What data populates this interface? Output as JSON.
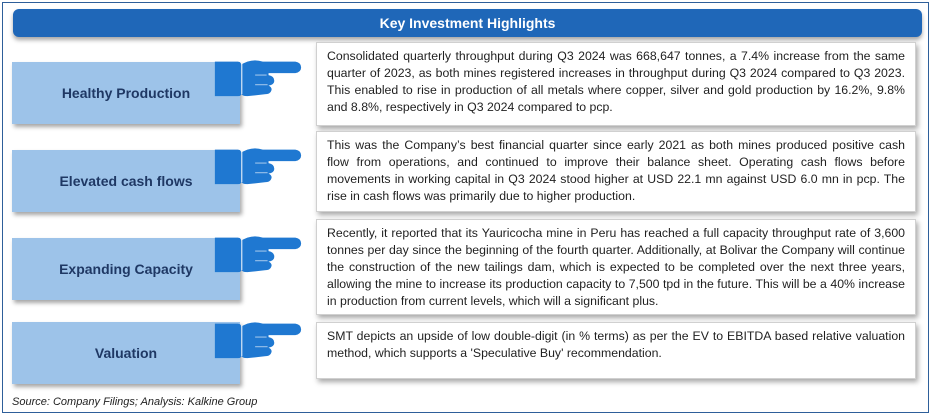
{
  "header": {
    "title": "Key Investment Highlights"
  },
  "colors": {
    "header": "#1f67b8",
    "label_bg": "#9dc3e9",
    "hand": "#1f78d1",
    "label_text": "#1f3864"
  },
  "rows": [
    {
      "label": "Healthy Production",
      "icon": "pointing-hand-icon",
      "text": "Consolidated quarterly throughput during Q3 2024 was 668,647 tonnes, a 7.4% increase from the same quarter of 2023, as both mines registered increases in throughput during Q3 2024 compared to Q3 2023. This enabled to rise in production of all metals where copper, silver and gold production by 16.2%, 9.8% and 8.8%, respectively in Q3 2024 compared to pcp."
    },
    {
      "label": "Elevated cash flows",
      "icon": "pointing-hand-icon",
      "text": "This was the Company’s best financial quarter since early 2021 as both mines produced positive cash flow from operations, and continued to improve their balance sheet. Operating cash flows before movements in working capital in Q3 2024 stood higher at USD 22.1 mn against USD 6.0 mn in pcp. The rise in cash flows was primarily due to higher production."
    },
    {
      "label": "Expanding Capacity",
      "icon": "pointing-hand-icon",
      "text": "Recently, it reported that its Yauricocha mine in Peru has reached a full capacity throughput rate of 3,600 tonnes per day since the beginning of the fourth quarter. Additionally, at Bolivar the Company will continue the construction of the new tailings dam, which is expected to be completed over the next three years, allowing the mine to increase its production capacity to 7,500 tpd in the future. This will be a 40% increase in production from current levels, which will a significant plus."
    },
    {
      "label": "Valuation",
      "icon": "pointing-hand-icon",
      "text": "SMT depicts an upside of low double-digit (in % terms) as per the EV to EBITDA based relative valuation method, which supports a 'Speculative Buy' recommendation."
    }
  ],
  "source": "Source: Company Filings; Analysis: Kalkine Group"
}
